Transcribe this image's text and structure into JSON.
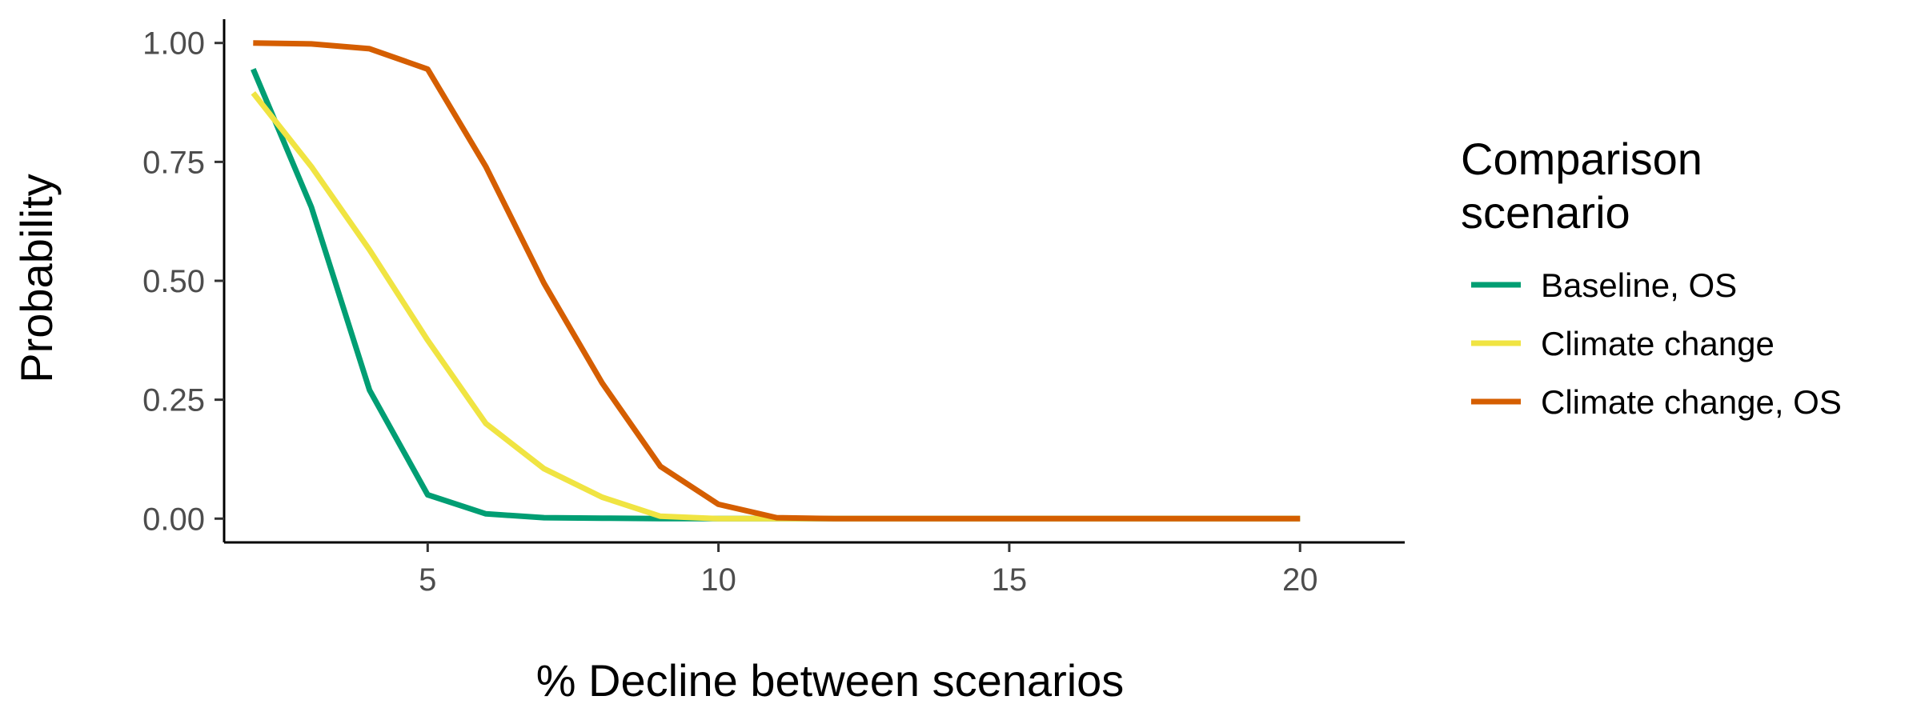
{
  "chart_data": {
    "type": "line",
    "xlabel": "% Decline between scenarios",
    "ylabel": "Probability",
    "xlim": [
      1.5,
      21.8
    ],
    "ylim": [
      -0.05,
      1.05
    ],
    "x_ticks": [
      5,
      10,
      15,
      20
    ],
    "y_ticks": [
      0.0,
      0.25,
      0.5,
      0.75,
      1.0
    ],
    "x_tick_labels": [
      "5",
      "10",
      "15",
      "20"
    ],
    "y_tick_labels": [
      "0.00",
      "0.25",
      "0.50",
      "0.75",
      "1.00"
    ],
    "grid": false,
    "legend": {
      "title_lines": [
        "Comparison",
        "scenario"
      ],
      "placement": "right"
    },
    "x": [
      2,
      3,
      4,
      5,
      6,
      7,
      8,
      9,
      10,
      11,
      12,
      13,
      14,
      15,
      16,
      17,
      18,
      19,
      20
    ],
    "series": [
      {
        "name": "Baseline, OS",
        "color": "#009E73",
        "values": [
          0.945,
          0.655,
          0.27,
          0.05,
          0.01,
          0.002,
          0.001,
          0.0,
          0.0,
          0.0,
          0.0,
          0.0,
          0.0,
          0.0,
          0.0,
          0.0,
          0.0,
          0.0,
          0.0
        ]
      },
      {
        "name": "Climate change",
        "color": "#F0E442",
        "values": [
          0.895,
          0.74,
          0.565,
          0.375,
          0.2,
          0.105,
          0.045,
          0.005,
          0.0,
          0.0,
          0.0,
          0.0,
          0.0,
          0.0,
          0.0,
          0.0,
          0.0,
          0.0,
          0.0
        ]
      },
      {
        "name": "Climate change, OS",
        "color": "#D55E00",
        "values": [
          1.0,
          0.998,
          0.988,
          0.945,
          0.74,
          0.495,
          0.285,
          0.11,
          0.03,
          0.002,
          0.0,
          0.0,
          0.0,
          0.0,
          0.0,
          0.0,
          0.0,
          0.0,
          0.0
        ]
      }
    ]
  }
}
